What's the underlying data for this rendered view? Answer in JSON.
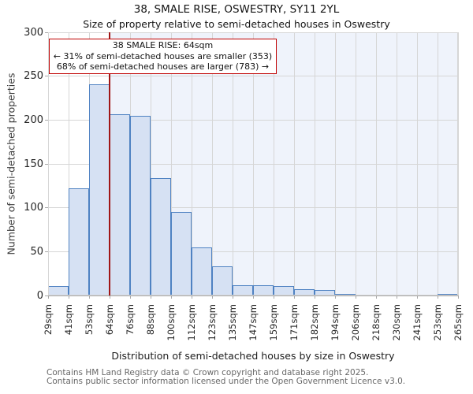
{
  "header": {
    "title": "38, SMALE RISE, OSWESTRY, SY11 2YL",
    "subtitle": "Size of property relative to semi-detached houses in Oswestry"
  },
  "annotation": {
    "line1": "38 SMALE RISE: 64sqm",
    "line2": "← 31% of semi-detached houses are smaller (353)",
    "line3": "68% of semi-detached houses are larger (783) →"
  },
  "chart_data": {
    "type": "bar",
    "title": "Size of property relative to semi-detached houses in Oswestry",
    "categories": [
      "29sqm",
      "41sqm",
      "53sqm",
      "64sqm",
      "76sqm",
      "88sqm",
      "100sqm",
      "112sqm",
      "123sqm",
      "135sqm",
      "147sqm",
      "159sqm",
      "171sqm",
      "182sqm",
      "194sqm",
      "206sqm",
      "218sqm",
      "230sqm",
      "241sqm",
      "253sqm",
      "265sqm"
    ],
    "values": [
      11,
      122,
      241,
      207,
      205,
      134,
      95,
      55,
      33,
      12,
      12,
      11,
      7,
      6,
      2,
      1,
      1,
      0,
      1,
      2
    ],
    "xlabel": "Distribution of semi-detached houses by size in Oswestry",
    "ylabel": "Number of semi-detached properties",
    "ylim": [
      0,
      300
    ],
    "yticks": [
      0,
      50,
      100,
      150,
      200,
      250,
      300
    ],
    "grid": true,
    "legend": "none",
    "marker": {
      "label": "64sqm",
      "edge_index": 3,
      "smaller_pct": 31,
      "smaller_count": 353,
      "larger_pct": 68,
      "larger_count": 783
    },
    "colors": {
      "bar_fill": "#d6e1f3",
      "bar_edge": "#4f82c2",
      "marker_line": "#a01616",
      "annotation_border": "#c00000",
      "shade_right_of_marker": "#eff3fb",
      "grid": "#d6d6d6",
      "axis_line": "#a8a8a8"
    }
  },
  "footer": {
    "line1": "Contains HM Land Registry data © Crown copyright and database right 2025.",
    "line2": "Contains public sector information licensed under the Open Government Licence v3.0."
  }
}
